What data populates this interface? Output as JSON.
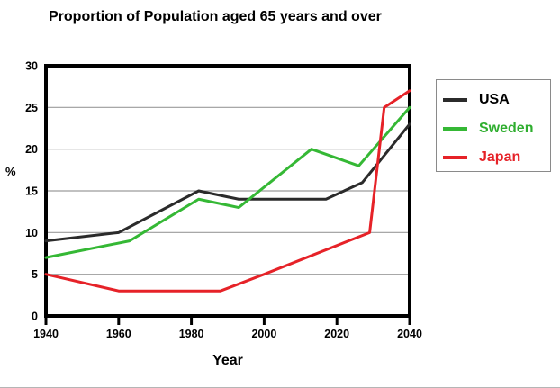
{
  "chart_data": {
    "type": "line",
    "title": "Proportion of Population aged 65 years and over",
    "xlabel": "Year",
    "ylabel": "%",
    "xlim": [
      1940,
      2040
    ],
    "ylim": [
      0,
      30
    ],
    "x_ticks": [
      1940,
      1960,
      1980,
      2000,
      2020,
      2040
    ],
    "y_ticks": [
      0,
      5,
      10,
      15,
      20,
      25,
      30
    ],
    "grid": "horizontal gridlines at 5, 10, 15, 20, 25",
    "legend_position": "outside-right",
    "series": [
      {
        "name": "USA",
        "color": "#2b2b2b",
        "label_color": "#000000",
        "points": [
          [
            1940,
            9
          ],
          [
            1960,
            10
          ],
          [
            1982,
            15
          ],
          [
            1993,
            14
          ],
          [
            2017,
            14
          ],
          [
            2027,
            16
          ],
          [
            2040,
            23
          ]
        ]
      },
      {
        "name": "Sweden",
        "color": "#35b835",
        "label_color": "#2fae2f",
        "points": [
          [
            1940,
            7
          ],
          [
            1963,
            9
          ],
          [
            1982,
            14
          ],
          [
            1993,
            13
          ],
          [
            2013,
            20
          ],
          [
            2026,
            18
          ],
          [
            2040,
            25
          ]
        ]
      },
      {
        "name": "Japan",
        "color": "#e62228",
        "label_color": "#e62228",
        "points": [
          [
            1940,
            5
          ],
          [
            1960,
            3
          ],
          [
            1988,
            3
          ],
          [
            2000,
            5
          ],
          [
            2029,
            10
          ],
          [
            2033,
            25
          ],
          [
            2040,
            27
          ]
        ]
      }
    ],
    "colors": {
      "gridline": "#9c9c9c",
      "axis": "#000000",
      "background": "#ffffff"
    }
  }
}
